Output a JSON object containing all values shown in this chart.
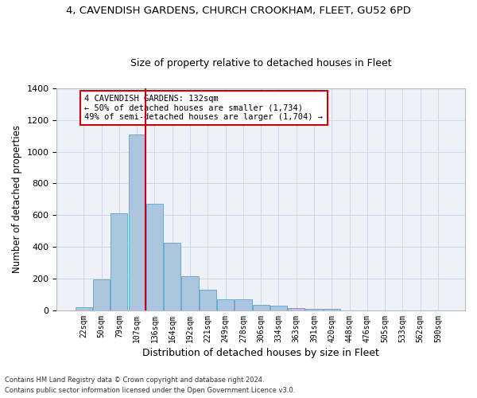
{
  "title_line1": "4, CAVENDISH GARDENS, CHURCH CROOKHAM, FLEET, GU52 6PD",
  "title_line2": "Size of property relative to detached houses in Fleet",
  "xlabel": "Distribution of detached houses by size in Fleet",
  "ylabel": "Number of detached properties",
  "categories": [
    "22sqm",
    "50sqm",
    "79sqm",
    "107sqm",
    "136sqm",
    "164sqm",
    "192sqm",
    "221sqm",
    "249sqm",
    "278sqm",
    "306sqm",
    "334sqm",
    "363sqm",
    "391sqm",
    "420sqm",
    "448sqm",
    "476sqm",
    "505sqm",
    "533sqm",
    "562sqm",
    "590sqm"
  ],
  "values": [
    18,
    195,
    610,
    1110,
    670,
    425,
    215,
    130,
    72,
    72,
    35,
    28,
    14,
    12,
    8,
    0,
    0,
    0,
    0,
    0,
    0
  ],
  "bar_color": "#adc6e0",
  "bar_edge_color": "#6aaad4",
  "grid_color": "#d0d8ea",
  "background_color": "#eef2f8",
  "annotation_text": "4 CAVENDISH GARDENS: 132sqm\n← 50% of detached houses are smaller (1,734)\n49% of semi-detached houses are larger (1,704) →",
  "annotation_box_color": "#ffffff",
  "annotation_box_edge_color": "#cc0000",
  "ylim": [
    0,
    1400
  ],
  "yticks": [
    0,
    200,
    400,
    600,
    800,
    1000,
    1200,
    1400
  ],
  "footer_line1": "Contains HM Land Registry data © Crown copyright and database right 2024.",
  "footer_line2": "Contains public sector information licensed under the Open Government Licence v3.0."
}
